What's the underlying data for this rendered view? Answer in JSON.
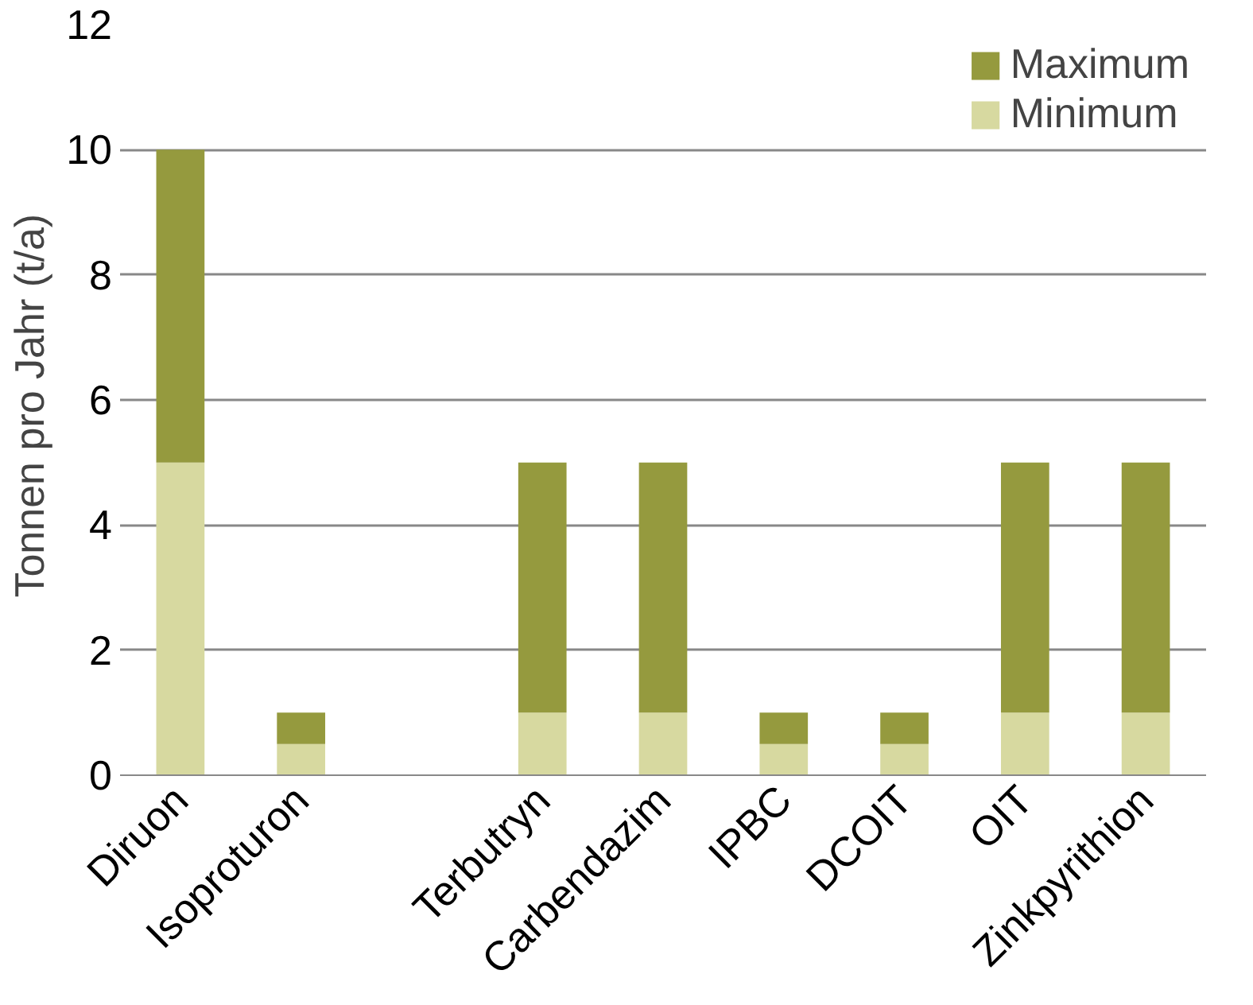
{
  "chart_data": {
    "type": "bar",
    "stacked": true,
    "ylabel": "Tonnen pro Jahr  (t/a)",
    "categories": [
      "Diruon",
      "Isoproturon",
      null,
      "Terbutryn",
      "Carbendazim",
      "IPBC",
      "DCOIT",
      "OIT",
      "Zinkpyrithion"
    ],
    "series": [
      {
        "name": "Minimum",
        "color": "#d7d9a0",
        "values": [
          5,
          0.5,
          null,
          1,
          1,
          0.5,
          0.5,
          1,
          1
        ]
      },
      {
        "name": "Maximum",
        "color": "#959a3e",
        "values": [
          5,
          0.5,
          null,
          4,
          4,
          0.5,
          0.5,
          4,
          4
        ]
      }
    ],
    "ylim": [
      0,
      12
    ],
    "yticks": [
      0,
      2,
      4,
      6,
      8,
      10,
      12
    ],
    "grid": "y",
    "legend": "top right"
  }
}
